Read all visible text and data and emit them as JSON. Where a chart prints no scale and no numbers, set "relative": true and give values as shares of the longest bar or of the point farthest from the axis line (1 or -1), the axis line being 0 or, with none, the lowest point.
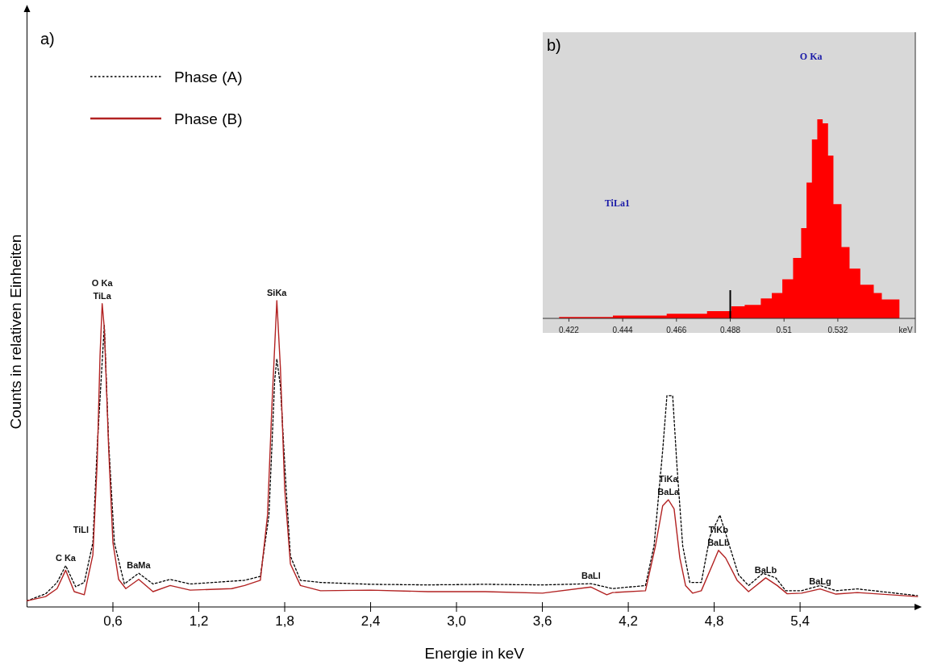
{
  "chart_data": [
    {
      "type": "line",
      "title": "a)",
      "xlabel": "Energie in keV",
      "ylabel": "Counts in relativen Einheiten",
      "relative": true,
      "legend": "top left",
      "xlim": [
        0,
        6.25
      ],
      "xticks": [
        {
          "value": 0.6,
          "label": "0,6"
        },
        {
          "value": 1.2,
          "label": "1,2"
        },
        {
          "value": 1.8,
          "label": "1,8"
        },
        {
          "value": 2.4,
          "label": "2,4"
        },
        {
          "value": 3.0,
          "label": "3,0"
        },
        {
          "value": 3.6,
          "label": "3,6"
        },
        {
          "value": 4.2,
          "label": "4,2"
        },
        {
          "value": 4.8,
          "label": "4,8"
        },
        {
          "value": 5.4,
          "label": "5,4"
        }
      ],
      "series": [
        {
          "name": "Phase (A)",
          "color": "#000000",
          "line_style": "dotted",
          "x": [
            0,
            0.13,
            0.21,
            0.27,
            0.34,
            0.4,
            0.46,
            0.49,
            0.54,
            0.57,
            0.61,
            0.68,
            0.78,
            0.88,
            1.0,
            1.14,
            1.52,
            1.63,
            1.69,
            1.73,
            1.745,
            1.77,
            1.81,
            1.84,
            1.91,
            2.05,
            2.4,
            2.8,
            3.2,
            3.6,
            3.94,
            4.09,
            4.32,
            4.38,
            4.44,
            4.47,
            4.51,
            4.54,
            4.58,
            4.63,
            4.71,
            4.77,
            4.84,
            4.9,
            4.97,
            5.04,
            5.14,
            5.23,
            5.3,
            5.41,
            5.54,
            5.65,
            5.8,
            6.22
          ],
          "values": [
            0.02,
            0.043,
            0.08,
            0.135,
            0.066,
            0.08,
            0.21,
            0.52,
            0.92,
            0.54,
            0.21,
            0.075,
            0.11,
            0.075,
            0.09,
            0.075,
            0.087,
            0.1,
            0.3,
            0.74,
            0.81,
            0.72,
            0.385,
            0.166,
            0.087,
            0.08,
            0.074,
            0.072,
            0.074,
            0.072,
            0.076,
            0.06,
            0.07,
            0.2,
            0.51,
            0.69,
            0.69,
            0.46,
            0.2,
            0.08,
            0.08,
            0.23,
            0.3,
            0.21,
            0.105,
            0.07,
            0.11,
            0.095,
            0.053,
            0.053,
            0.07,
            0.053,
            0.059,
            0.037
          ]
        },
        {
          "name": "Phase (B)",
          "color": "#b22222",
          "line_style": "solid",
          "x": [
            0,
            0.13,
            0.21,
            0.27,
            0.33,
            0.4,
            0.46,
            0.49,
            0.51,
            0.525,
            0.54,
            0.57,
            0.6,
            0.64,
            0.69,
            0.78,
            0.88,
            1.0,
            1.14,
            1.43,
            1.52,
            1.63,
            1.68,
            1.71,
            1.745,
            1.77,
            1.8,
            1.84,
            1.91,
            2.05,
            2.4,
            2.8,
            3.2,
            3.6,
            3.94,
            4.05,
            4.09,
            4.32,
            4.39,
            4.44,
            4.48,
            4.52,
            4.56,
            4.6,
            4.65,
            4.71,
            4.79,
            4.83,
            4.88,
            4.96,
            5.04,
            5.16,
            5.24,
            5.31,
            5.41,
            5.54,
            5.65,
            5.8,
            6.22
          ],
          "values": [
            0.02,
            0.034,
            0.06,
            0.12,
            0.05,
            0.04,
            0.17,
            0.47,
            0.82,
            0.99,
            0.91,
            0.52,
            0.21,
            0.09,
            0.06,
            0.09,
            0.05,
            0.07,
            0.055,
            0.06,
            0.07,
            0.087,
            0.3,
            0.65,
            1.0,
            0.78,
            0.385,
            0.14,
            0.07,
            0.053,
            0.055,
            0.05,
            0.05,
            0.045,
            0.065,
            0.04,
            0.047,
            0.053,
            0.2,
            0.33,
            0.35,
            0.32,
            0.16,
            0.07,
            0.045,
            0.053,
            0.14,
            0.185,
            0.16,
            0.087,
            0.05,
            0.095,
            0.07,
            0.043,
            0.045,
            0.059,
            0.042,
            0.047,
            0.034
          ]
        }
      ],
      "annotations": [
        {
          "text": "O Ka",
          "x": 0.525,
          "y": 0.99
        },
        {
          "text": "TiLa",
          "x": 0.525,
          "y": 0.99
        },
        {
          "text": "TiLl",
          "x": 0.46,
          "y": 0.21
        },
        {
          "text": "C Ka",
          "x": 0.27,
          "y": 0.135
        },
        {
          "text": "BaMa",
          "x": 0.78,
          "y": 0.11
        },
        {
          "text": "SiKa",
          "x": 1.745,
          "y": 1.0
        },
        {
          "text": "BaLl",
          "x": 3.94,
          "y": 0.076
        },
        {
          "text": "TiKa",
          "x": 4.48,
          "y": 0.35
        },
        {
          "text": "BaLa",
          "x": 4.48,
          "y": 0.35
        },
        {
          "text": "TiKb",
          "x": 4.83,
          "y": 0.185
        },
        {
          "text": "BaLb",
          "x": 4.83,
          "y": 0.185
        },
        {
          "text": "BaLb",
          "x": 5.16,
          "y": 0.095
        },
        {
          "text": "BaLg",
          "x": 5.54,
          "y": 0.059
        }
      ]
    },
    {
      "type": "area",
      "title": "b)",
      "xlabel": "keV",
      "relative": true,
      "xlim": [
        0.4113,
        0.5637
      ],
      "xticks": [
        0.422,
        0.444,
        0.466,
        0.488,
        0.51,
        0.532
      ],
      "series": [
        {
          "color": "#ff0000",
          "x": [
            0.418,
            0.44,
            0.462,
            0.4785,
            0.4884,
            0.4939,
            0.5005,
            0.505,
            0.5093,
            0.5137,
            0.517,
            0.5192,
            0.5214,
            0.5236,
            0.5258,
            0.528,
            0.5302,
            0.5335,
            0.5368,
            0.5412,
            0.5467,
            0.55,
            0.5572
          ],
          "values": [
            0.007,
            0.014,
            0.023,
            0.036,
            0.061,
            0.068,
            0.1,
            0.128,
            0.196,
            0.304,
            0.453,
            0.682,
            0.899,
            1.0,
            0.98,
            0.818,
            0.574,
            0.358,
            0.25,
            0.169,
            0.128,
            0.095,
            0.061
          ]
        }
      ],
      "ref_lines": [
        {
          "axis": "x",
          "value": 0.488,
          "color": "#000000"
        }
      ],
      "annotations": [
        "TiLa1",
        "O Ka"
      ]
    }
  ]
}
